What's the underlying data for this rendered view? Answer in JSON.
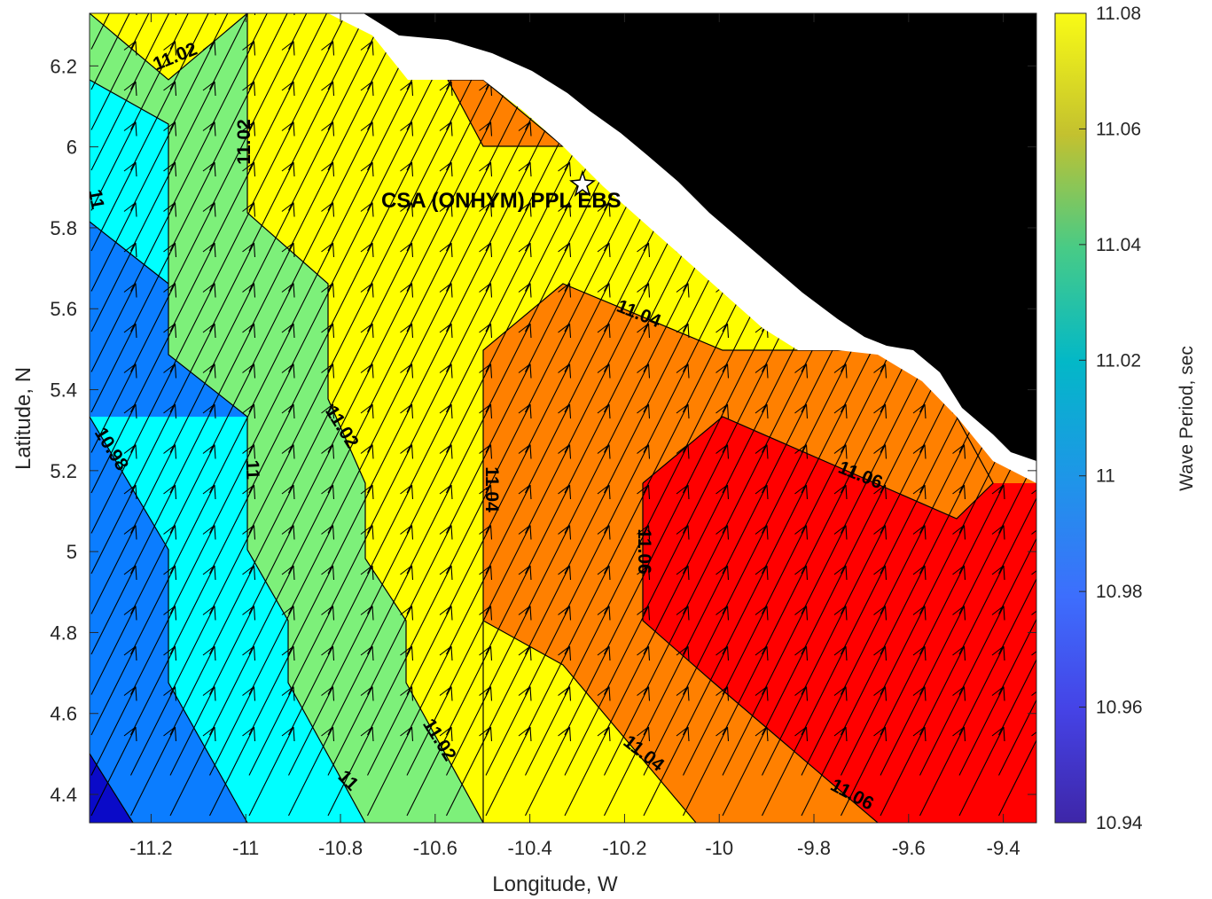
{
  "map": {
    "xlabel": "Longitude, W",
    "ylabel": "Latitude, N",
    "xlim": [
      -11.33,
      -9.33
    ],
    "ylim": [
      4.33,
      6.33
    ],
    "x_ticks": [
      "-11.2",
      "-11",
      "-10.8",
      "-10.6",
      "-10.4",
      "-10.2",
      "-10",
      "-9.8",
      "-9.6",
      "-9.4"
    ],
    "y_ticks": [
      "4.4",
      "4.6",
      "4.8",
      "5",
      "5.2",
      "5.4",
      "5.6",
      "5.8",
      "6",
      "6.2"
    ],
    "site": {
      "label": "CSA (ONHYM) PPL EBS",
      "lon": -10.29,
      "lat": 5.91,
      "marker": "star"
    },
    "land_color": "#000000",
    "coast_strip_color": "#ffffff",
    "vector_field": "wave direction arrows, uniform length, pointing north-northeast",
    "level_colors": {
      "10.96": "#0a0ac8",
      "10.98": "#0b7dff",
      "11.00": "#00ffff",
      "11.02": "#7df07a",
      "11.04": "#ffff00",
      "11.06": "#ff8000",
      "11.08": "#ff0000"
    },
    "contour_labels": [
      "11.02",
      "11.02",
      "11",
      "11.02",
      "11",
      "10.98",
      "11.04",
      "11.04",
      "11.06",
      "11.06",
      "11.02",
      "11",
      "11.04",
      "11.06"
    ]
  },
  "colorbar": {
    "title": "Wave Period, sec",
    "range": [
      10.94,
      11.08
    ],
    "ticks": [
      "11.08",
      "11.06",
      "11.04",
      "11.02",
      "11",
      "10.98",
      "10.96",
      "10.94"
    ],
    "colormap": "parula"
  }
}
